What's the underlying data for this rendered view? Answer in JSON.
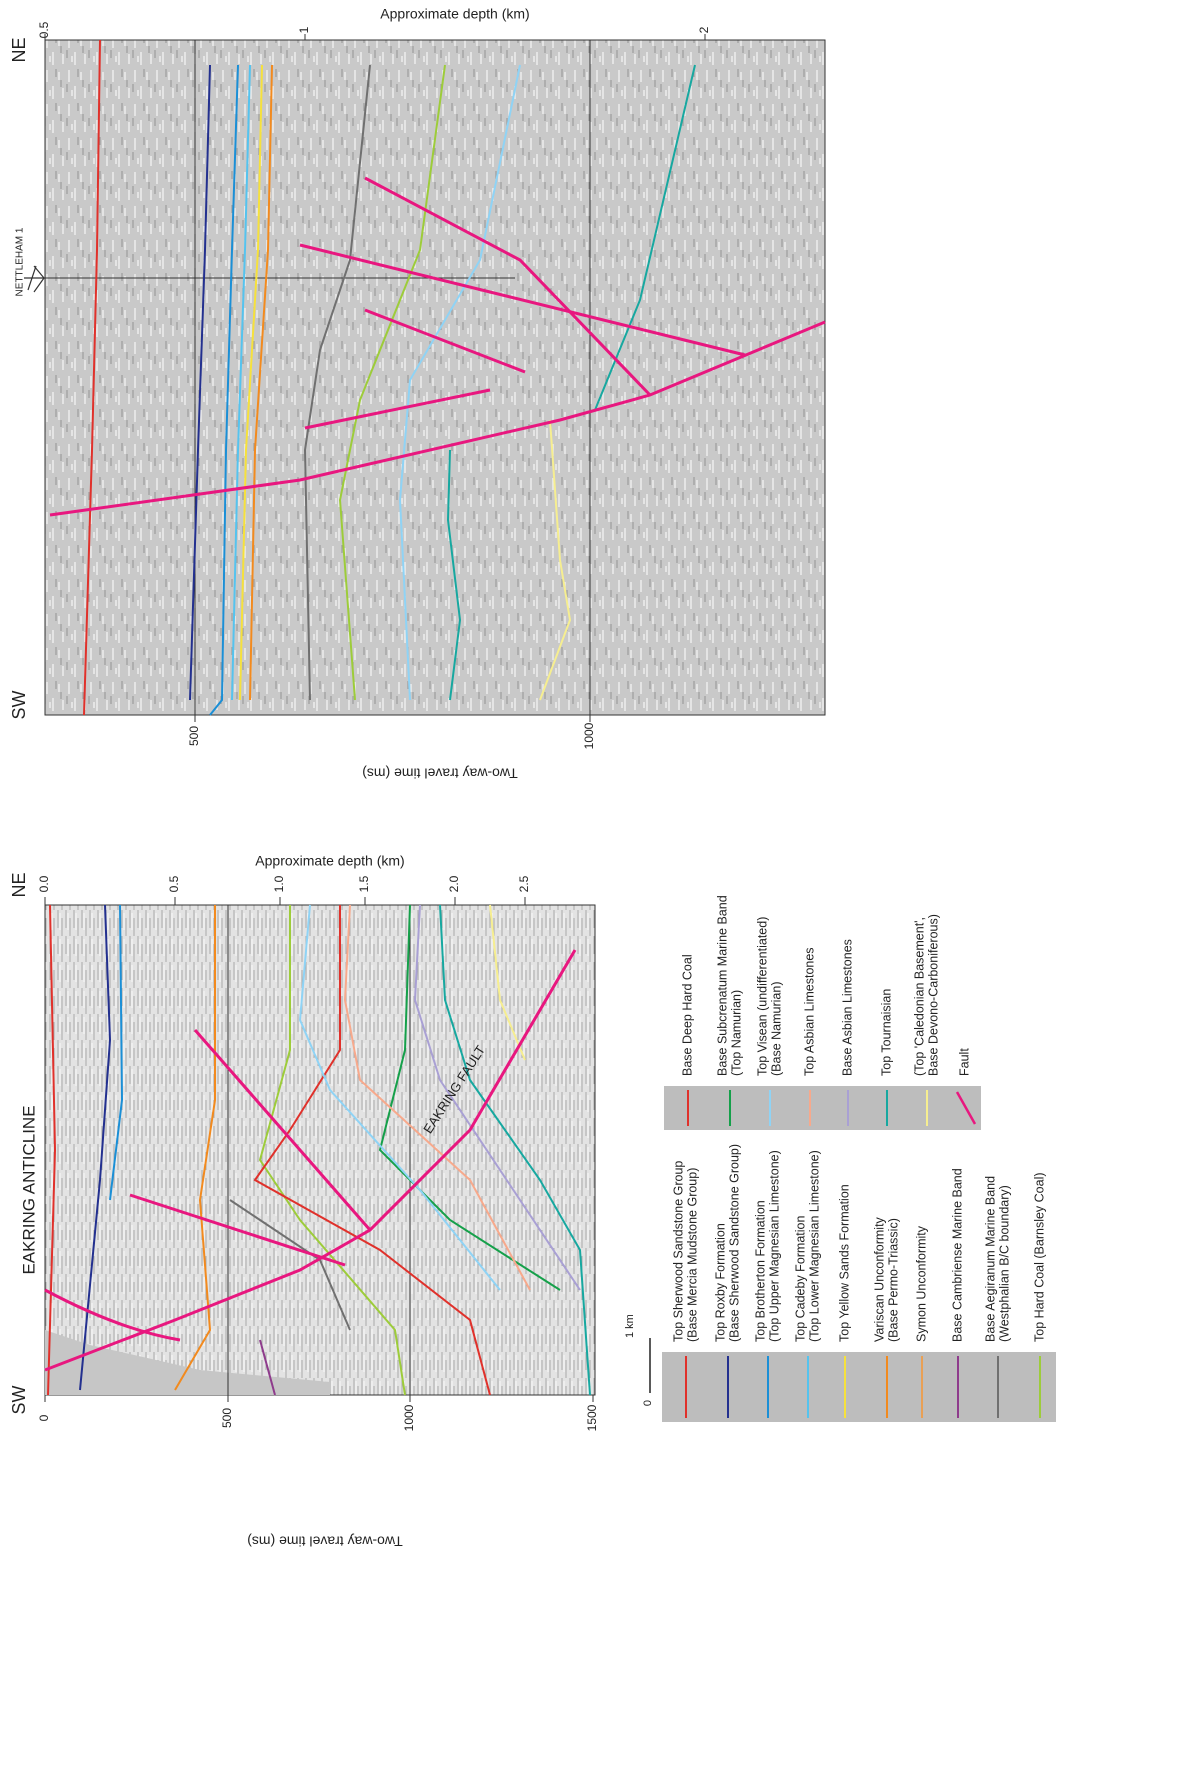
{
  "panels": [
    {
      "sw": "SW",
      "ne": "NE",
      "title": "EAKRING ANTICLINE",
      "time_axis_title": "Two-way travel time (ms)",
      "time_ticks": [
        "0",
        "500",
        "1000",
        "1500"
      ],
      "depth_axis_title": "Approximate depth (km)",
      "depth_ticks": [
        "0.0",
        "0.5",
        "1.0",
        "1.5",
        "2.0",
        "2.5"
      ],
      "fault_label": "EAKRING FAULT",
      "scale_bar": [
        "0",
        "1 km"
      ]
    },
    {
      "sw": "SW",
      "ne": "NE",
      "well": "NETTLEHAM 1",
      "time_axis_title": "Two-way travel time (ms)",
      "time_ticks": [
        "500",
        "1000"
      ],
      "depth_axis_title": "Approximate depth (km)",
      "depth_ticks": [
        "0.5",
        "1",
        "2"
      ]
    }
  ],
  "legend_left": [
    {
      "label": [
        "Top Sherwood Sandstone Group",
        "(Base Mercia Mudstone Group)"
      ],
      "color": "#e0312b"
    },
    {
      "label": [
        "Top Roxby Formation",
        "(Base Sherwood Sandstone Group)"
      ],
      "color": "#23308f"
    },
    {
      "label": [
        "Top Brotherton Formation",
        "(Top Upper Magnesian Limestone)"
      ],
      "color": "#1b8fd6"
    },
    {
      "label": [
        "Top Cadeby Formation",
        "(Top Lower Magnesian Limestone)"
      ],
      "color": "#55c3ee"
    },
    {
      "label": [
        "Top Yellow Sands Formation"
      ],
      "color": "#f6e13c"
    },
    {
      "label": [
        "Variscan Unconformity",
        "(Base Permo-Triassic)"
      ],
      "color": "#f28a1e"
    },
    {
      "label": [
        "Symon Unconformity"
      ],
      "color": "#e9a055"
    },
    {
      "label": [
        "Base Cambriense Marine Band"
      ],
      "color": "#8e3b8c"
    },
    {
      "label": [
        "Base Aegiranum Marine Band",
        "(Westphalian B/C boundary)"
      ],
      "color": "#707070"
    },
    {
      "label": [
        "Top Hard Coal (Barnsley Coal)"
      ],
      "color": "#9dcc3a"
    }
  ],
  "legend_right": [
    {
      "label": [
        "Base Deep Hard Coal"
      ],
      "color": "#e0312b"
    },
    {
      "label": [
        "Base Subcrenatum Marine Band",
        "(Top Namurian)"
      ],
      "color": "#15a04a"
    },
    {
      "label": [
        "Top Visean (undifferentiated)",
        "(Base Namurian)"
      ],
      "color": "#8fd3f5"
    },
    {
      "label": [
        "Top Asbian Limestones"
      ],
      "color": "#f7a98c"
    },
    {
      "label": [
        "Base Asbian Limestones"
      ],
      "color": "#a9a0d4"
    },
    {
      "label": [
        "Top Tournaisian"
      ],
      "color": "#17a8a0"
    },
    {
      "label": [
        "(Top 'Caledonian Basement',",
        "Base Devono-Carboniferous)"
      ],
      "color": "#f6ee90"
    },
    {
      "label": [
        "Fault"
      ],
      "color": "#e8177f"
    }
  ]
}
